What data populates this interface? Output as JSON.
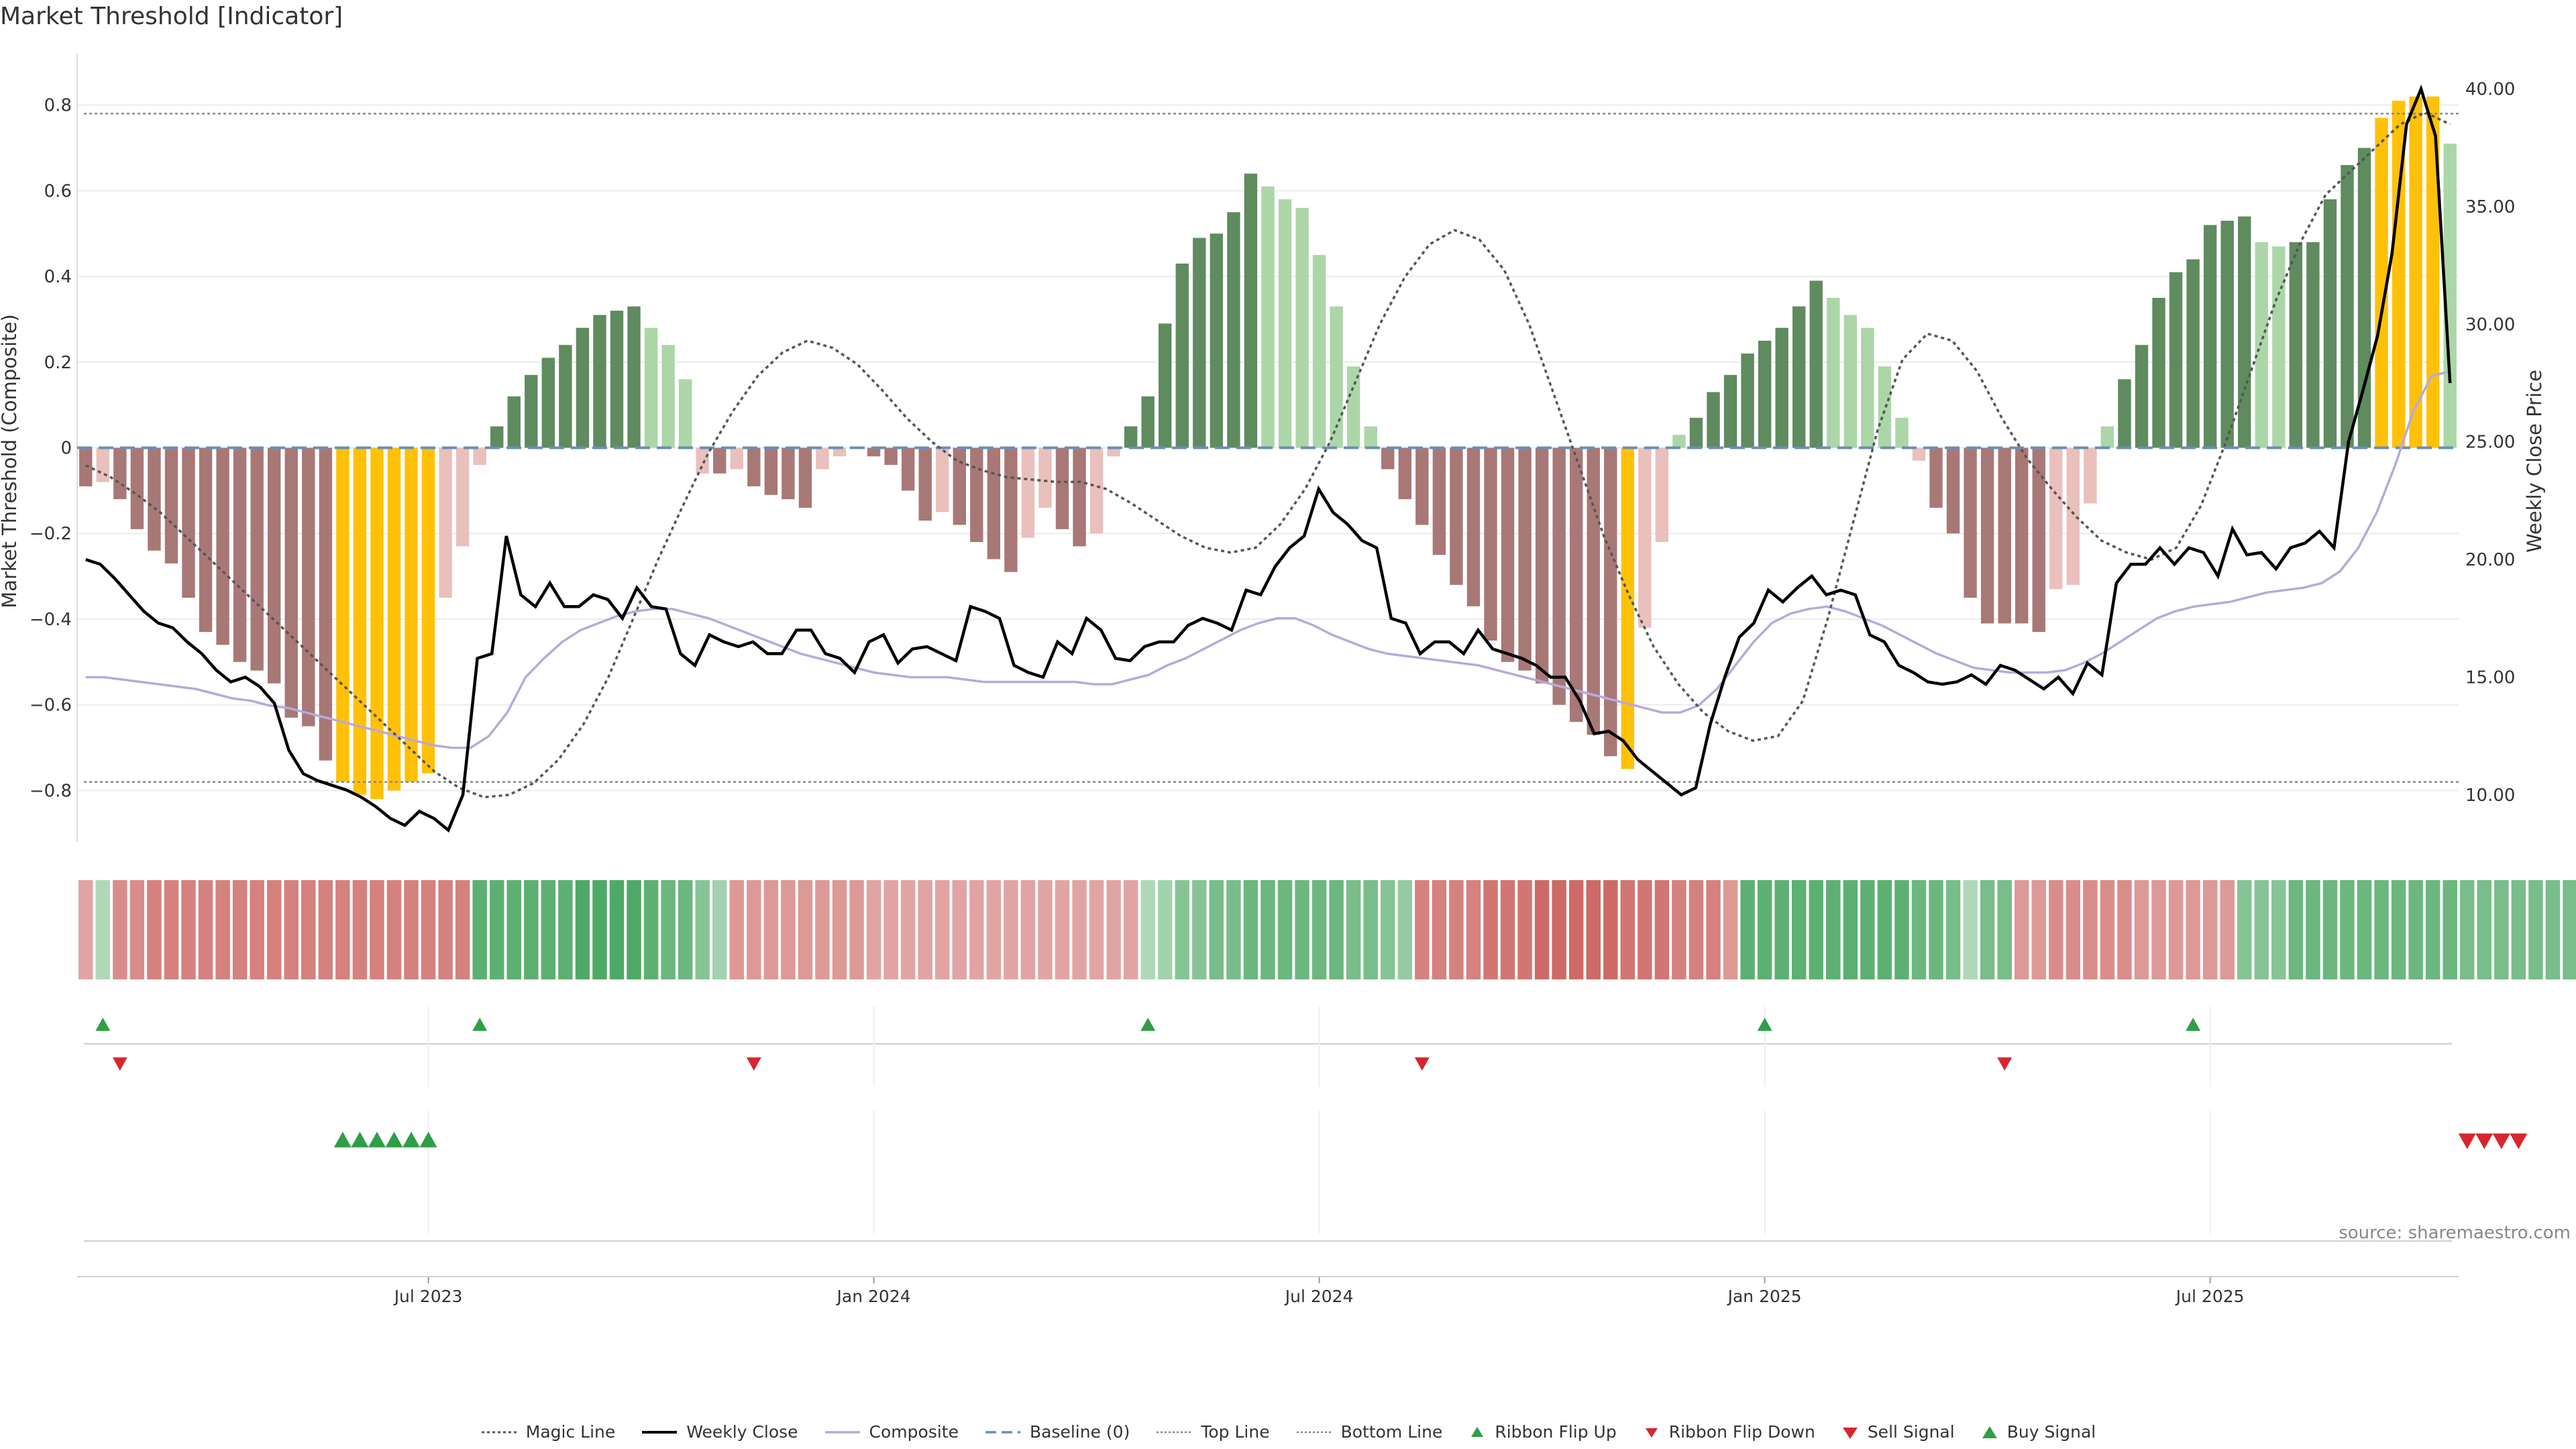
{
  "title": "Market Threshold [Indicator]",
  "source": "source: sharemaestro.com",
  "colors": {
    "positive_strong": "#5f8b5f",
    "positive_weak": "#acd6a8",
    "negative_strong": "#a87877",
    "negative_weak": "#e9c0bc",
    "extreme": "#ffc107",
    "weekly_close": "#000000",
    "composite": "#b8a9dc",
    "magic_line": "#555555",
    "baseline": "#6a8fb5",
    "threshold_line": "#888888",
    "buy": "#2e9e47",
    "sell": "#d7262e"
  },
  "legend": [
    {
      "key": "magic",
      "label": "Magic Line"
    },
    {
      "key": "close",
      "label": "Weekly Close"
    },
    {
      "key": "composite",
      "label": "Composite"
    },
    {
      "key": "baseline",
      "label": "Baseline (0)"
    },
    {
      "key": "top",
      "label": "Top Line"
    },
    {
      "key": "bottom",
      "label": "Bottom Line"
    },
    {
      "key": "flip_up",
      "label": "Ribbon Flip Up"
    },
    {
      "key": "flip_down",
      "label": "Ribbon Flip Down"
    },
    {
      "key": "sell",
      "label": "Sell Signal"
    },
    {
      "key": "buy",
      "label": "Buy Signal"
    }
  ],
  "chart_data": {
    "type": "bar",
    "ylabel_left": "Market Threshold (Composite)",
    "ylabel_right": "Weekly Close Price",
    "ylim_left": [
      -0.92,
      0.92
    ],
    "ylim_right": [
      8.0,
      41.5
    ],
    "yticks_left": [
      "0.8",
      "0.6",
      "0.4",
      "0.2",
      "0",
      "−0.2",
      "−0.4",
      "−0.6",
      "−0.8"
    ],
    "yticks_right": [
      "40.00",
      "35.00",
      "30.00",
      "25.00",
      "20.00",
      "15.00",
      "10.00"
    ],
    "top_line": 0.78,
    "bottom_line": -0.78,
    "baseline": 0,
    "x_tick_labels": [
      {
        "label": "Jul 2023",
        "week": 20.5
      },
      {
        "label": "Jan 2024",
        "week": 46.5
      },
      {
        "label": "Jul 2024",
        "week": 72.5
      },
      {
        "label": "Jan 2025",
        "week": 98.5
      },
      {
        "label": "Jul 2025",
        "week": 124.5
      }
    ],
    "bars": [
      -0.09,
      -0.08,
      -0.12,
      -0.19,
      -0.24,
      -0.27,
      -0.35,
      -0.43,
      -0.46,
      -0.5,
      -0.52,
      -0.55,
      -0.63,
      -0.65,
      -0.73,
      -0.78,
      -0.81,
      -0.82,
      -0.8,
      -0.78,
      -0.76,
      -0.35,
      -0.23,
      -0.04,
      0.05,
      0.12,
      0.17,
      0.21,
      0.24,
      0.28,
      0.31,
      0.32,
      0.33,
      0.28,
      0.24,
      0.16,
      -0.06,
      -0.06,
      -0.05,
      -0.09,
      -0.11,
      -0.12,
      -0.14,
      -0.05,
      -0.02,
      0.0,
      -0.02,
      -0.04,
      -0.1,
      -0.17,
      -0.15,
      -0.18,
      -0.22,
      -0.26,
      -0.29,
      -0.21,
      -0.14,
      -0.19,
      -0.23,
      -0.2,
      -0.02,
      0.05,
      0.12,
      0.29,
      0.43,
      0.49,
      0.5,
      0.55,
      0.64,
      0.61,
      0.58,
      0.56,
      0.45,
      0.33,
      0.19,
      0.05,
      -0.05,
      -0.12,
      -0.18,
      -0.25,
      -0.32,
      -0.37,
      -0.45,
      -0.5,
      -0.52,
      -0.55,
      -0.6,
      -0.64,
      -0.67,
      -0.72,
      -0.75,
      -0.42,
      -0.22,
      0.03,
      0.07,
      0.13,
      0.17,
      0.22,
      0.25,
      0.28,
      0.33,
      0.39,
      0.35,
      0.31,
      0.28,
      0.19,
      0.07,
      -0.03,
      -0.14,
      -0.2,
      -0.35,
      -0.41,
      -0.41,
      -0.41,
      -0.43,
      -0.33,
      -0.32,
      -0.13,
      0.05,
      0.16,
      0.24,
      0.35,
      0.41,
      0.44,
      0.52,
      0.53,
      0.54,
      0.48,
      0.47,
      0.48,
      0.48,
      0.58,
      0.66,
      0.7,
      0.77,
      0.81,
      0.82,
      0.82,
      0.71
    ],
    "weekly_close": [
      20.0,
      19.8,
      19.2,
      18.5,
      17.8,
      17.3,
      17.1,
      16.5,
      16.0,
      15.3,
      14.8,
      15.0,
      14.6,
      13.9,
      11.9,
      10.9,
      10.6,
      10.4,
      10.2,
      9.9,
      9.5,
      9.0,
      8.7,
      9.3,
      9.0,
      8.5,
      10.0,
      15.8,
      16.0,
      21.0,
      18.5,
      18.0,
      19.0,
      18.0,
      18.0,
      18.5,
      18.3,
      17.5,
      18.8,
      18.0,
      17.9,
      16.0,
      15.5,
      16.8,
      16.5,
      16.3,
      16.5,
      16.0,
      16.0,
      17.0,
      17.0,
      16.0,
      15.8,
      15.2,
      16.5,
      16.8,
      15.6,
      16.2,
      16.3,
      16.0,
      15.7,
      18.0,
      17.8,
      17.5,
      15.5,
      15.2,
      15.0,
      16.5,
      16.0,
      17.5,
      17.0,
      15.8,
      15.7,
      16.3,
      16.5,
      16.5,
      17.2,
      17.5,
      17.3,
      17.0,
      18.7,
      18.5,
      19.7,
      20.5,
      21.0,
      23.0,
      22.0,
      21.5,
      20.8,
      20.5,
      17.5,
      17.3,
      16.0,
      16.5,
      16.5,
      16.0,
      17.0,
      16.2,
      16.0,
      15.8,
      15.5,
      15.0,
      15.0,
      14.0,
      12.6,
      12.7,
      12.3,
      11.5,
      11.0,
      10.5,
      10.0,
      10.3,
      13.0,
      15.0,
      16.7,
      17.3,
      18.7,
      18.2,
      18.8,
      19.3,
      18.5,
      18.7,
      18.5,
      16.8,
      16.5,
      15.5,
      15.2,
      14.8,
      14.7,
      14.8,
      15.1,
      14.7,
      15.5,
      15.3,
      14.9,
      14.5,
      15.0,
      14.3,
      15.6,
      15.1,
      19.0,
      19.8,
      19.8,
      20.5,
      19.8,
      20.5,
      20.3,
      19.3,
      21.3,
      20.2,
      20.3,
      19.6,
      20.5,
      20.7,
      21.2,
      20.5,
      25.0,
      27.2,
      29.5,
      33.0,
      38.5,
      40.0,
      38.0,
      27.5
    ],
    "composite": [
      15.0,
      15.0,
      14.9,
      14.8,
      14.7,
      14.6,
      14.5,
      14.3,
      14.1,
      14.0,
      13.8,
      13.7,
      13.5,
      13.3,
      13.1,
      12.9,
      12.7,
      12.5,
      12.3,
      12.1,
      12.0,
      12.0,
      12.5,
      13.5,
      15.0,
      15.8,
      16.5,
      17.0,
      17.3,
      17.6,
      17.8,
      17.9,
      17.9,
      17.7,
      17.5,
      17.2,
      16.9,
      16.6,
      16.3,
      16.0,
      15.8,
      15.6,
      15.4,
      15.2,
      15.1,
      15.0,
      15.0,
      15.0,
      14.9,
      14.8,
      14.8,
      14.8,
      14.8,
      14.8,
      14.8,
      14.7,
      14.7,
      14.9,
      15.1,
      15.5,
      15.8,
      16.2,
      16.6,
      17.0,
      17.3,
      17.5,
      17.5,
      17.2,
      16.8,
      16.5,
      16.2,
      16.0,
      15.9,
      15.8,
      15.7,
      15.6,
      15.5,
      15.3,
      15.1,
      14.9,
      14.7,
      14.5,
      14.3,
      14.1,
      13.9,
      13.7,
      13.5,
      13.5,
      13.8,
      14.5,
      15.5,
      16.5,
      17.3,
      17.7,
      17.9,
      18.0,
      17.8,
      17.5,
      17.2,
      16.8,
      16.4,
      16.0,
      15.7,
      15.4,
      15.3,
      15.2,
      15.2,
      15.2,
      15.3,
      15.6,
      16.0,
      16.5,
      17.0,
      17.5,
      17.8,
      18.0,
      18.1,
      18.2,
      18.4,
      18.6,
      18.7,
      18.8,
      19.0,
      19.5,
      20.5,
      22.0,
      24.0,
      26.3,
      27.8,
      28.0
    ],
    "magic_line": [
      24.0,
      23.5,
      22.8,
      22.0,
      21.0,
      20.0,
      19.0,
      18.0,
      17.0,
      16.0,
      15.0,
      14.0,
      13.0,
      12.0,
      11.0,
      10.3,
      9.9,
      10.0,
      10.5,
      11.5,
      13.0,
      15.0,
      17.5,
      20.0,
      22.3,
      24.5,
      26.3,
      27.8,
      28.8,
      29.3,
      29.0,
      28.3,
      27.2,
      26.0,
      25.0,
      24.2,
      23.8,
      23.5,
      23.4,
      23.3,
      23.3,
      23.0,
      22.4,
      21.7,
      21.0,
      20.5,
      20.3,
      20.5,
      21.5,
      23.0,
      25.0,
      27.5,
      30.0,
      32.0,
      33.4,
      34.0,
      33.6,
      32.3,
      30.0,
      27.0,
      24.0,
      21.0,
      18.5,
      16.3,
      14.7,
      13.5,
      12.7,
      12.3,
      12.5,
      14.0,
      17.5,
      21.5,
      25.5,
      28.5,
      29.6,
      29.3,
      28.0,
      26.0,
      24.3,
      23.0,
      21.8,
      20.8,
      20.3,
      20.0,
      20.5,
      22.3,
      25.0,
      28.0,
      31.0,
      33.5,
      35.5,
      36.5,
      37.5,
      38.5,
      39.0,
      38.5
    ],
    "ribbon": [
      -0.5,
      0.3,
      -0.7,
      -0.7,
      -0.8,
      -0.8,
      -0.8,
      -0.8,
      -0.8,
      -0.8,
      -0.8,
      -0.8,
      -0.8,
      -0.8,
      -0.8,
      -0.8,
      -0.8,
      -0.8,
      -0.8,
      -0.8,
      -0.8,
      -0.8,
      -0.8,
      0.9,
      0.9,
      0.9,
      0.9,
      0.9,
      0.9,
      1.0,
      1.0,
      1.0,
      1.0,
      0.9,
      0.8,
      0.8,
      0.6,
      0.4,
      -0.6,
      -0.6,
      -0.6,
      -0.6,
      -0.6,
      -0.6,
      -0.6,
      -0.6,
      -0.5,
      -0.5,
      -0.5,
      -0.5,
      -0.5,
      -0.5,
      -0.5,
      -0.5,
      -0.5,
      -0.5,
      -0.5,
      -0.5,
      -0.5,
      -0.5,
      -0.5,
      -0.5,
      0.3,
      0.4,
      0.6,
      0.6,
      0.7,
      0.7,
      0.8,
      0.8,
      0.8,
      0.8,
      0.8,
      0.8,
      0.7,
      0.7,
      0.6,
      0.5,
      -0.8,
      -0.8,
      -0.8,
      -0.8,
      -0.9,
      -0.9,
      -0.9,
      -1.0,
      -1.0,
      -1.0,
      -1.0,
      -1.0,
      -0.9,
      -0.9,
      -0.9,
      -0.8,
      -0.8,
      -0.8,
      -0.6,
      0.9,
      0.9,
      0.9,
      0.9,
      0.9,
      0.9,
      0.9,
      0.9,
      0.9,
      0.9,
      0.8,
      0.8,
      0.7,
      0.3,
      0.7,
      0.7,
      -0.6,
      -0.6,
      -0.7,
      -0.7,
      -0.7,
      -0.7,
      -0.7,
      -0.6,
      -0.6,
      -0.6,
      -0.6,
      -0.6,
      -0.6,
      0.6,
      0.6,
      0.6,
      0.8,
      0.8,
      0.8,
      0.8,
      0.8,
      0.8,
      0.8,
      0.8,
      0.8,
      0.8,
      0.7,
      0.7,
      0.7,
      0.7,
      0.7,
      0.7,
      0.7,
      0.7
    ],
    "ribbon_flip_up": [
      1,
      23,
      62,
      98,
      123
    ],
    "ribbon_flip_down": [
      2,
      39,
      78,
      112
    ],
    "buy_signals": [
      15,
      16,
      17,
      18,
      19,
      20
    ],
    "sell_signals": [
      139,
      140,
      141,
      142
    ]
  }
}
